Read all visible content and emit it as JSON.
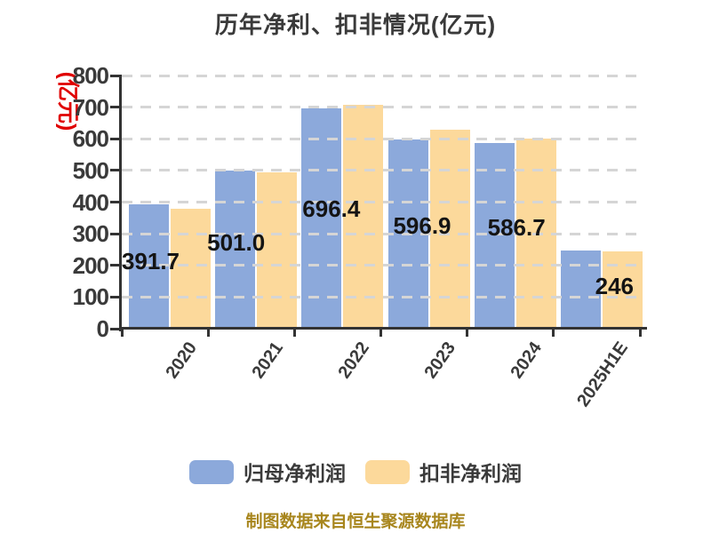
{
  "chart_data": {
    "type": "bar",
    "title": "历年净利、扣非情况(亿元)",
    "ylabel": "(亿元)",
    "xlabel": "",
    "categories": [
      "2020",
      "2021",
      "2022",
      "2023",
      "2024",
      "2025H1E"
    ],
    "series": [
      {
        "name": "归母净利润",
        "color": "#8CA9DB",
        "values": [
          391.7,
          501.0,
          696.4,
          596.9,
          586.7,
          246
        ],
        "data_labels": [
          "391.7",
          "501.0",
          "696.4",
          "596.9",
          "586.7",
          "246"
        ]
      },
      {
        "name": "扣非净利润",
        "color": "#FCD99B",
        "values": [
          380,
          495,
          707,
          630,
          602,
          243
        ],
        "data_labels": []
      }
    ],
    "ylim": [
      0,
      800
    ],
    "ytick_step": 100,
    "grid": "horizontal-dashed",
    "legend_position": "bottom",
    "footer": "制图数据来自恒生聚源数据库"
  },
  "colors": {
    "background": "#FFFFFF",
    "bar_blue": "#8CA9DB",
    "bar_yellow": "#FCD99B",
    "axis": "#333333",
    "grid_line": "#D5D5D5",
    "tick_text": "#3A3A3A",
    "value_label_text": "#141414",
    "y_unit_label_red": "#E00000",
    "footer_gold": "#A8861D"
  }
}
